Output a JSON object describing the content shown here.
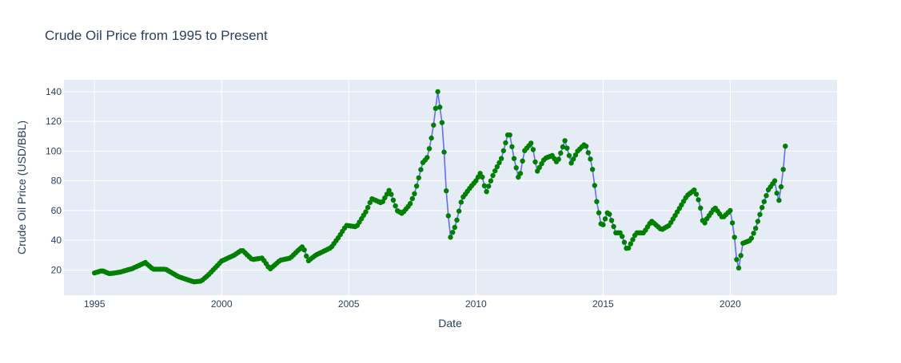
{
  "chart_data": {
    "type": "line",
    "title": "Crude Oil Price from 1995 to Present",
    "xlabel": "Date",
    "ylabel": "Crude Oil Price (USD/BBL)",
    "xlim": [
      1993.8,
      2024.2
    ],
    "ylim": [
      3,
      148
    ],
    "x_ticks": [
      1995,
      2000,
      2005,
      2010,
      2015,
      2020
    ],
    "x_tick_labels": [
      "1995",
      "2000",
      "2005",
      "2010",
      "2015",
      "2020"
    ],
    "y_ticks": [
      20,
      40,
      60,
      80,
      100,
      120,
      140
    ],
    "y_tick_labels": [
      "20",
      "40",
      "60",
      "80",
      "100",
      "120",
      "140"
    ],
    "grid": true,
    "line_color": "#636efa",
    "marker_color": "#008000",
    "plot_bg": "#e5ecf6",
    "series": [
      {
        "anchors": [
          [
            1995.0,
            18.0
          ],
          [
            1995.3,
            19.5
          ],
          [
            1995.6,
            17.5
          ],
          [
            1996.0,
            18.5
          ],
          [
            1996.5,
            21.0
          ],
          [
            1997.0,
            25.0
          ],
          [
            1997.3,
            20.5
          ],
          [
            1997.8,
            20.5
          ],
          [
            1998.3,
            15.5
          ],
          [
            1998.9,
            12.0
          ],
          [
            1999.2,
            12.5
          ],
          [
            1999.5,
            17.0
          ],
          [
            2000.0,
            26.0
          ],
          [
            2000.5,
            30.0
          ],
          [
            2000.8,
            33.5
          ],
          [
            2001.2,
            27.0
          ],
          [
            2001.6,
            28.0
          ],
          [
            2001.9,
            20.5
          ],
          [
            2002.3,
            26.5
          ],
          [
            2002.7,
            28.0
          ],
          [
            2003.0,
            33.0
          ],
          [
            2003.2,
            36.0
          ],
          [
            2003.4,
            26.0
          ],
          [
            2003.7,
            30.0
          ],
          [
            2004.3,
            35.0
          ],
          [
            2004.6,
            42.0
          ],
          [
            2004.9,
            50.0
          ],
          [
            2005.3,
            49.0
          ],
          [
            2005.7,
            60.0
          ],
          [
            2005.9,
            68.0
          ],
          [
            2006.3,
            65.0
          ],
          [
            2006.6,
            74.0
          ],
          [
            2006.9,
            60.0
          ],
          [
            2007.1,
            58.0
          ],
          [
            2007.4,
            64.0
          ],
          [
            2007.6,
            72.0
          ],
          [
            2007.9,
            92.0
          ],
          [
            2008.1,
            96.0
          ],
          [
            2008.3,
            113.0
          ],
          [
            2008.5,
            140.0
          ],
          [
            2008.7,
            115.0
          ],
          [
            2008.85,
            68.0
          ],
          [
            2009.0,
            42.0
          ],
          [
            2009.2,
            50.0
          ],
          [
            2009.45,
            68.0
          ],
          [
            2009.8,
            76.0
          ],
          [
            2010.0,
            80.0
          ],
          [
            2010.2,
            86.0
          ],
          [
            2010.4,
            72.0
          ],
          [
            2010.7,
            85.0
          ],
          [
            2011.0,
            95.0
          ],
          [
            2011.3,
            114.0
          ],
          [
            2011.5,
            95.0
          ],
          [
            2011.7,
            80.0
          ],
          [
            2011.9,
            100.0
          ],
          [
            2012.2,
            106.0
          ],
          [
            2012.4,
            86.0
          ],
          [
            2012.7,
            95.0
          ],
          [
            2013.0,
            97.0
          ],
          [
            2013.2,
            92.0
          ],
          [
            2013.5,
            107.0
          ],
          [
            2013.75,
            92.0
          ],
          [
            2014.0,
            100.0
          ],
          [
            2014.3,
            105.0
          ],
          [
            2014.55,
            92.0
          ],
          [
            2014.75,
            66.0
          ],
          [
            2014.95,
            48.0
          ],
          [
            2015.2,
            60.0
          ],
          [
            2015.5,
            45.0
          ],
          [
            2015.7,
            45.0
          ],
          [
            2015.95,
            33.0
          ],
          [
            2016.3,
            45.0
          ],
          [
            2016.6,
            45.0
          ],
          [
            2016.9,
            53.0
          ],
          [
            2017.3,
            47.0
          ],
          [
            2017.6,
            50.0
          ],
          [
            2017.95,
            60.0
          ],
          [
            2018.3,
            70.0
          ],
          [
            2018.6,
            74.0
          ],
          [
            2018.8,
            65.0
          ],
          [
            2018.95,
            50.0
          ],
          [
            2019.1,
            55.0
          ],
          [
            2019.4,
            62.0
          ],
          [
            2019.7,
            55.0
          ],
          [
            2020.0,
            60.0
          ],
          [
            2020.15,
            45.0
          ],
          [
            2020.3,
            18.0
          ],
          [
            2020.5,
            38.0
          ],
          [
            2020.8,
            40.0
          ],
          [
            2021.0,
            48.0
          ],
          [
            2021.25,
            62.0
          ],
          [
            2021.5,
            74.0
          ],
          [
            2021.75,
            80.0
          ],
          [
            2021.9,
            65.0
          ],
          [
            2022.0,
            76.0
          ],
          [
            2022.1,
            90.0
          ],
          [
            2022.2,
            110.0
          ]
        ]
      }
    ]
  }
}
